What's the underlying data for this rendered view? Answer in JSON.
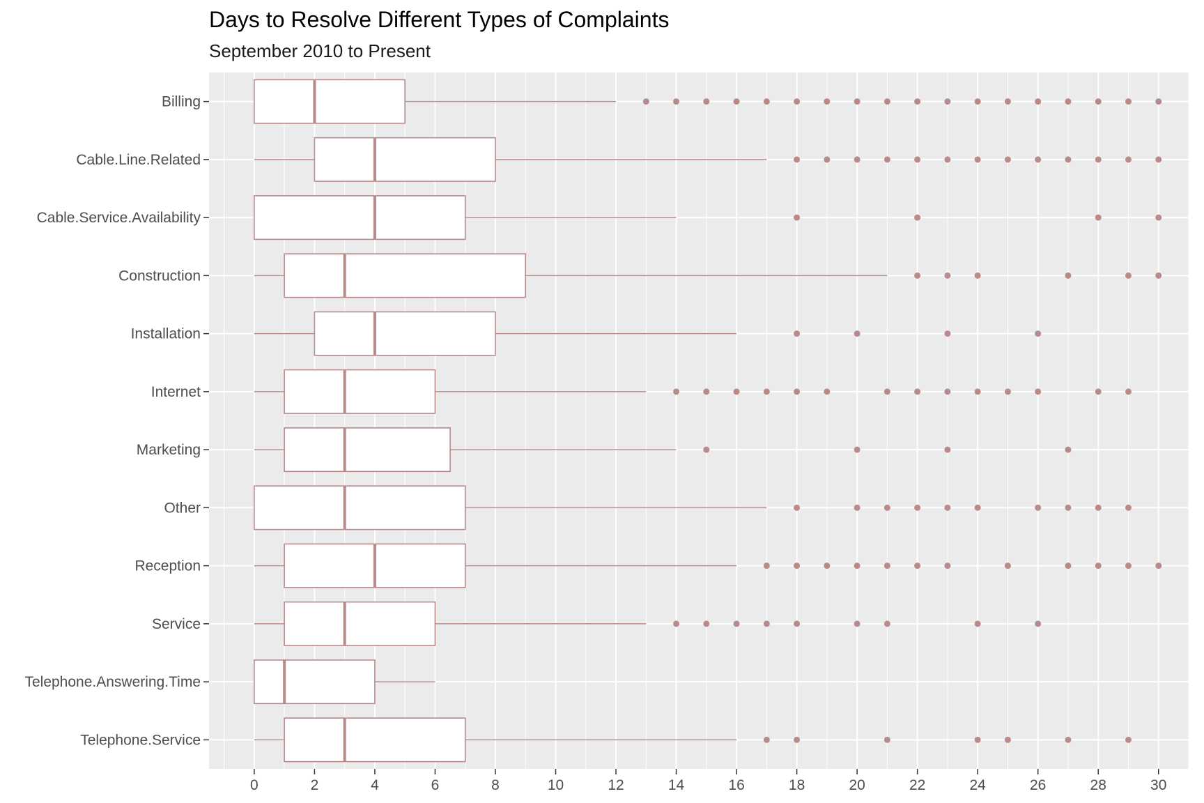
{
  "chart_data": {
    "type": "boxplot",
    "title": "Days to Resolve Different Types of Complaints",
    "subtitle": "September 2010 to Present",
    "xlabel": "",
    "ylabel": "",
    "xlim": [
      -1.5,
      31
    ],
    "x_ticks": [
      0,
      2,
      4,
      6,
      8,
      10,
      12,
      14,
      16,
      18,
      20,
      22,
      24,
      26,
      28,
      30
    ],
    "grid": true,
    "legend": "none",
    "colors": {
      "panel": "#EBEBEB",
      "grid": "#FFFFFF",
      "box_outline": "#B88A8A",
      "box_fill": "#FFFFFF",
      "outlier": "#B88A8A",
      "axis_text": "#4D4D4D"
    },
    "categories": [
      "Billing",
      "Cable.Line.Related",
      "Cable.Service.Availability",
      "Construction",
      "Installation",
      "Internet",
      "Marketing",
      "Other",
      "Reception",
      "Service",
      "Telephone.Answering.Time",
      "Telephone.Service"
    ],
    "boxes": [
      {
        "category": "Billing",
        "min": 0,
        "q1": 0,
        "median": 2,
        "q3": 5,
        "max": 12,
        "outliers": [
          13,
          14,
          15,
          16,
          17,
          18,
          19,
          20,
          21,
          22,
          23,
          24,
          25,
          26,
          27,
          28,
          29,
          30
        ]
      },
      {
        "category": "Cable.Line.Related",
        "min": 0,
        "q1": 2,
        "median": 4,
        "q3": 8,
        "max": 17,
        "outliers": [
          18,
          19,
          20,
          21,
          22,
          23,
          24,
          25,
          26,
          27,
          28,
          29,
          30
        ]
      },
      {
        "category": "Cable.Service.Availability",
        "min": 0,
        "q1": 0,
        "median": 4,
        "q3": 7,
        "max": 14,
        "outliers": [
          18,
          22,
          28,
          30
        ]
      },
      {
        "category": "Construction",
        "min": 0,
        "q1": 1,
        "median": 3,
        "q3": 9,
        "max": 21,
        "outliers": [
          22,
          23,
          24,
          27,
          29,
          30
        ]
      },
      {
        "category": "Installation",
        "min": 0,
        "q1": 2,
        "median": 4,
        "q3": 8,
        "max": 16,
        "outliers": [
          18,
          20,
          23,
          26
        ]
      },
      {
        "category": "Internet",
        "min": 0,
        "q1": 1,
        "median": 3,
        "q3": 6,
        "max": 13,
        "outliers": [
          14,
          15,
          16,
          17,
          18,
          19,
          21,
          22,
          23,
          24,
          25,
          26,
          28,
          29
        ]
      },
      {
        "category": "Marketing",
        "min": 0,
        "q1": 1,
        "median": 3,
        "q3": 6.5,
        "max": 14,
        "outliers": [
          15,
          20,
          23,
          27
        ]
      },
      {
        "category": "Other",
        "min": 0,
        "q1": 0,
        "median": 3,
        "q3": 7,
        "max": 17,
        "outliers": [
          18,
          20,
          21,
          22,
          23,
          24,
          26,
          27,
          28,
          29
        ]
      },
      {
        "category": "Reception",
        "min": 0,
        "q1": 1,
        "median": 4,
        "q3": 7,
        "max": 16,
        "outliers": [
          17,
          18,
          19,
          20,
          21,
          22,
          23,
          25,
          27,
          28,
          29,
          30
        ]
      },
      {
        "category": "Service",
        "min": 0,
        "q1": 1,
        "median": 3,
        "q3": 6,
        "max": 13,
        "outliers": [
          14,
          15,
          16,
          17,
          18,
          20,
          21,
          24,
          26
        ]
      },
      {
        "category": "Telephone.Answering.Time",
        "min": 0,
        "q1": 0,
        "median": 1,
        "q3": 4,
        "max": 6,
        "outliers": []
      },
      {
        "category": "Telephone.Service",
        "min": 0,
        "q1": 1,
        "median": 3,
        "q3": 7,
        "max": 16,
        "outliers": [
          17,
          18,
          21,
          24,
          25,
          27,
          29
        ]
      }
    ]
  }
}
